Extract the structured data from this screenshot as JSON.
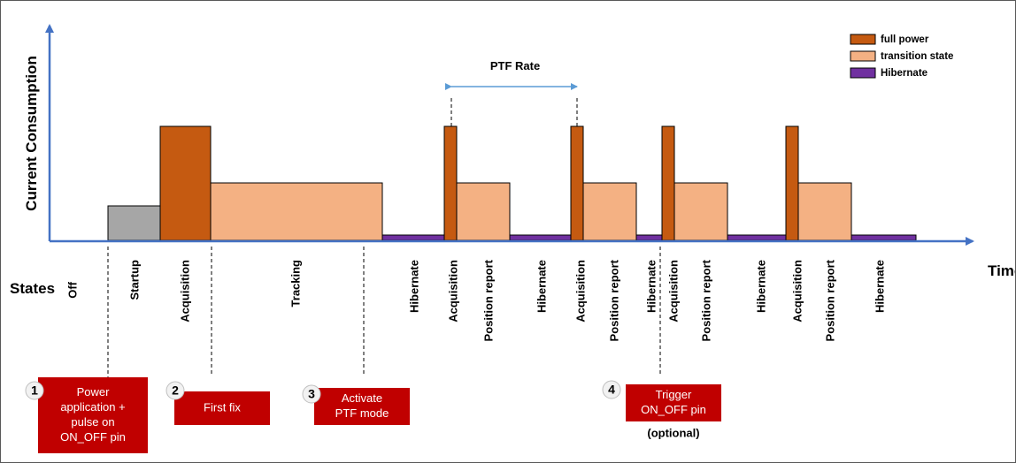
{
  "y_axis_label": "Current Consumption",
  "x_axis_label": "Time",
  "states_label": "States",
  "ptf_rate_label": "PTF Rate",
  "legend": [
    {
      "label": "full power",
      "color": "#C55A11"
    },
    {
      "label": "transition state",
      "color": "#F4B183"
    },
    {
      "label": "Hibernate",
      "color": "#7030A0"
    }
  ],
  "colors": {
    "axis": "#4472C4",
    "startup": "#A6A6A6",
    "full_power": "#C55A11",
    "transition": "#F4B183",
    "hibernate": "#7030A0",
    "callout": "#C00000",
    "badge": "#F2F2F2"
  },
  "states": [
    {
      "label": "Off",
      "level": "none"
    },
    {
      "label": "Startup",
      "level": "startup"
    },
    {
      "label": "Acquisition",
      "level": "full_power"
    },
    {
      "label": "Tracking",
      "level": "transition"
    },
    {
      "label": "Hibernate",
      "level": "hibernate"
    },
    {
      "label": "Acquisition",
      "level": "full_power"
    },
    {
      "label": "Position report",
      "level": "transition"
    },
    {
      "label": "Hibernate",
      "level": "hibernate"
    },
    {
      "label": "Acquisition",
      "level": "full_power"
    },
    {
      "label": "Position report",
      "level": "transition"
    },
    {
      "label": "Hibernate",
      "level": "hibernate"
    },
    {
      "label": "Acquisition",
      "level": "full_power"
    },
    {
      "label": "Position report",
      "level": "transition"
    },
    {
      "label": "Hibernate",
      "level": "hibernate"
    },
    {
      "label": "Acquisition",
      "level": "full_power"
    },
    {
      "label": "Position report",
      "level": "transition"
    },
    {
      "label": "Hibernate",
      "level": "hibernate"
    }
  ],
  "callouts": [
    {
      "number": "1",
      "lines": [
        "Power",
        "application +",
        "pulse on",
        "ON_OFF pin"
      ],
      "note": ""
    },
    {
      "number": "2",
      "lines": [
        "First fix"
      ],
      "note": ""
    },
    {
      "number": "3",
      "lines": [
        "Activate",
        "PTF mode"
      ],
      "note": ""
    },
    {
      "number": "4",
      "lines": [
        "Trigger",
        "ON_OFF pin"
      ],
      "note": "(optional)"
    }
  ]
}
